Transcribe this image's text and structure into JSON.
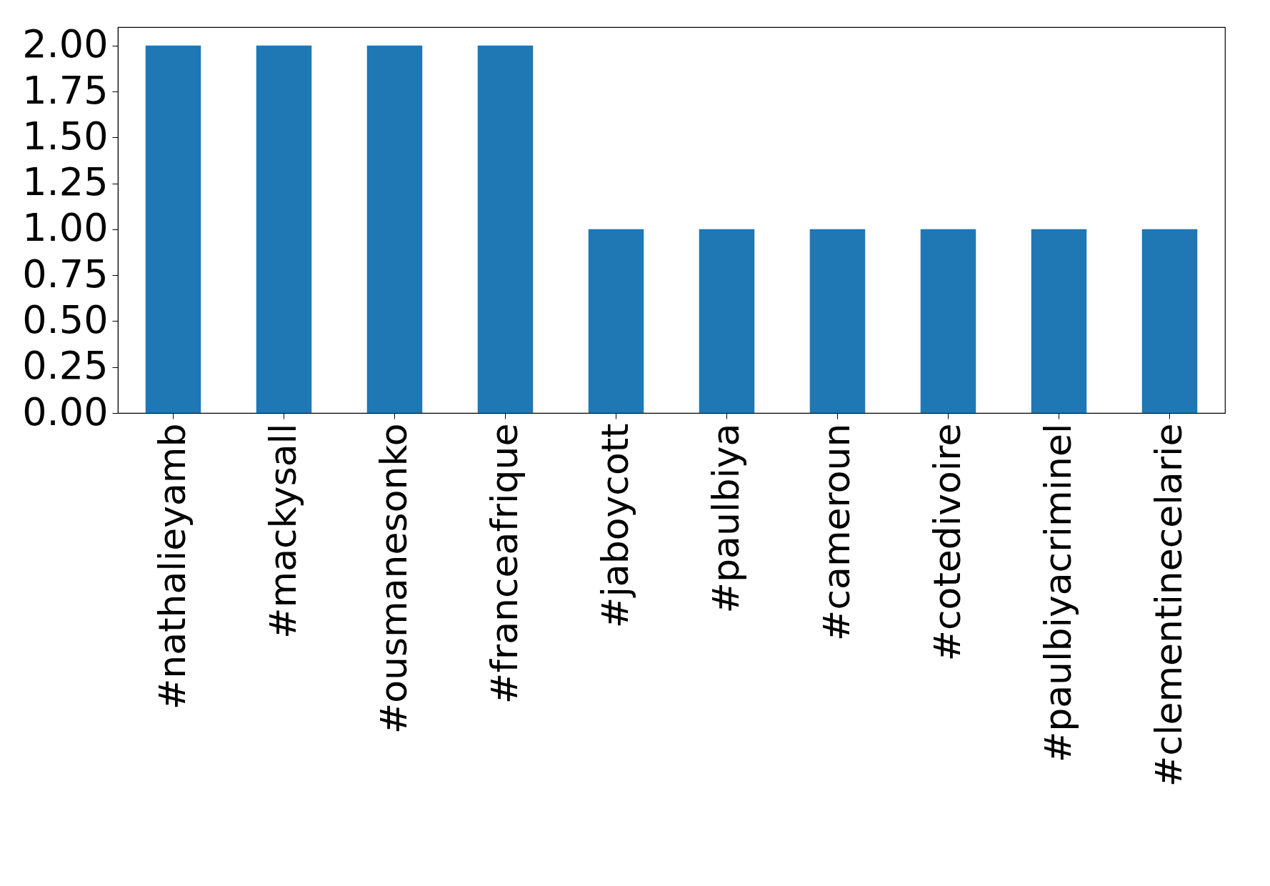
{
  "chart_data": {
    "type": "bar",
    "categories": [
      "#nathalieyamb",
      "#mackysall",
      "#ousmanesonko",
      "#franceafrique",
      "#jaboycott",
      "#paulbiya",
      "#cameroun",
      "#cotedivoire",
      "#paulbiyacriminel",
      "#clementinecelarie"
    ],
    "values": [
      2,
      2,
      2,
      2,
      1,
      1,
      1,
      1,
      1,
      1
    ],
    "color": "#1f77b4",
    "ylim": [
      0,
      2.1
    ],
    "yticks": [
      {
        "value": 0,
        "label": "0.00"
      },
      {
        "value": 0.25,
        "label": "0.25"
      },
      {
        "value": 0.5,
        "label": "0.50"
      },
      {
        "value": 0.75,
        "label": "0.75"
      },
      {
        "value": 1,
        "label": "1.00"
      },
      {
        "value": 1.25,
        "label": "1.25"
      },
      {
        "value": 1.5,
        "label": "1.50"
      },
      {
        "value": 1.75,
        "label": "1.75"
      },
      {
        "value": 2,
        "label": "2.00"
      }
    ],
    "grid": false
  }
}
